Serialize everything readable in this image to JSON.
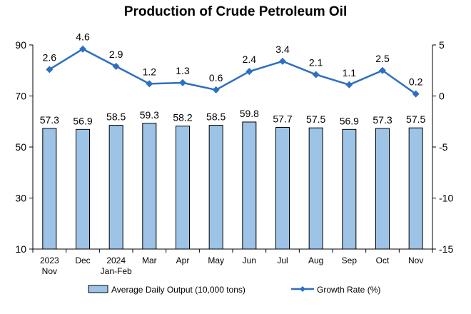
{
  "chart_data": {
    "type": "bar+line",
    "title": "Production of Crude Petroleum Oil",
    "categories": [
      [
        "2023",
        "Nov"
      ],
      [
        "Dec"
      ],
      [
        "2024",
        "Jan-Feb"
      ],
      [
        "Mar"
      ],
      [
        "Apr"
      ],
      [
        "May"
      ],
      [
        "Jun"
      ],
      [
        "Jul"
      ],
      [
        "Aug"
      ],
      [
        "Sep"
      ],
      [
        "Oct"
      ],
      [
        "Nov"
      ]
    ],
    "series": [
      {
        "name": "Average Daily Output (10,000 tons)",
        "type": "bar",
        "axis": "left",
        "values": [
          57.3,
          56.9,
          58.5,
          59.3,
          58.2,
          58.5,
          59.8,
          57.7,
          57.5,
          56.9,
          57.3,
          57.5
        ],
        "color": "#9dc3e6",
        "border": "#000000"
      },
      {
        "name": "Growth Rate (%)",
        "type": "line",
        "axis": "right",
        "values": [
          2.6,
          4.6,
          2.9,
          1.2,
          1.3,
          0.6,
          2.4,
          3.4,
          2.1,
          1.1,
          2.5,
          0.2
        ],
        "color": "#2e6fc0"
      }
    ],
    "y_left": {
      "min": 10,
      "max": 90,
      "ticks": [
        10,
        30,
        50,
        70,
        90
      ]
    },
    "y_right": {
      "min": -15,
      "max": 5,
      "ticks": [
        5,
        0,
        -5,
        -10,
        -15
      ]
    },
    "grid": false,
    "legend": "bottom"
  }
}
